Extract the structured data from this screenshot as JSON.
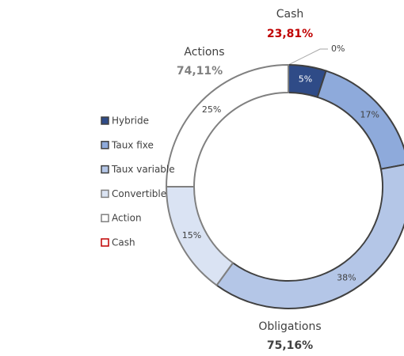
{
  "chart_data": {
    "type": "donut",
    "categories": [
      "Hybride",
      "Taux fixe",
      "Taux variable",
      "Convertible",
      "Action",
      "Cash"
    ],
    "values": [
      5,
      17,
      38,
      15,
      25,
      0
    ],
    "value_labels": [
      "5%",
      "17%",
      "38%",
      "15%",
      "25%",
      "0%"
    ],
    "colors": [
      "#2f4b87",
      "#8eaadb",
      "#b4c6e7",
      "#dae3f3",
      "#ffffff",
      "#ffffff"
    ],
    "edge_colors": [
      "#404040",
      "#404040",
      "#404040",
      "#808080",
      "#808080",
      "#c00000"
    ],
    "label_colors": [
      "#ffffff",
      "#404040",
      "#404040",
      "#404040",
      "#404040",
      "#404040"
    ],
    "order": [
      5,
      0,
      1,
      2,
      3,
      4
    ],
    "annotations": [
      {
        "text": "Cash",
        "value": "23,81%",
        "color": "#c00000"
      },
      {
        "text": "Actions",
        "value": "74,11%",
        "color": "#808080"
      },
      {
        "text": "Obligations",
        "value": "75,16%",
        "color": "#404040"
      }
    ]
  }
}
